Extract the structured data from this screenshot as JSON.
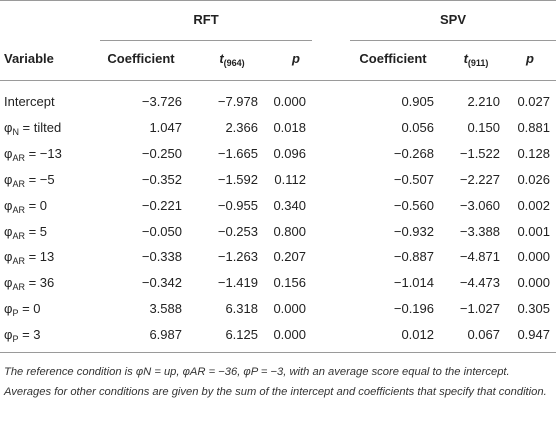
{
  "table": {
    "groups": [
      "RFT",
      "SPV"
    ],
    "header": [
      "Variable",
      "Coefficient",
      {
        "base": "t",
        "sub": "(964)"
      },
      "p",
      "Coefficient",
      {
        "base": "t",
        "sub": "(911)"
      },
      "p"
    ],
    "rows": [
      [
        "Intercept",
        "−3.726",
        "−7.978",
        "0.000",
        "0.905",
        "2.210",
        "0.027"
      ],
      [
        {
          "symbol": "φ",
          "sub": "N",
          "text": " = tilted"
        },
        "1.047",
        "2.366",
        "0.018",
        "0.056",
        "0.150",
        "0.881"
      ],
      [
        {
          "symbol": "φ",
          "sub": "AR",
          "text": " = −13"
        },
        "−0.250",
        "−1.665",
        "0.096",
        "−0.268",
        "−1.522",
        "0.128"
      ],
      [
        {
          "symbol": "φ",
          "sub": "AR",
          "text": " = −5"
        },
        "−0.352",
        "−1.592",
        "0.112",
        "−0.507",
        "−2.227",
        "0.026"
      ],
      [
        {
          "symbol": "φ",
          "sub": "AR",
          "text": " = 0"
        },
        "−0.221",
        "−0.955",
        "0.340",
        "−0.560",
        "−3.060",
        "0.002"
      ],
      [
        {
          "symbol": "φ",
          "sub": "AR",
          "text": " = 5"
        },
        "−0.050",
        "−0.253",
        "0.800",
        "−0.932",
        "−3.388",
        "0.001"
      ],
      [
        {
          "symbol": "φ",
          "sub": "AR",
          "text": " = 13"
        },
        "−0.338",
        "−1.263",
        "0.207",
        "−0.887",
        "−4.871",
        "0.000"
      ],
      [
        {
          "symbol": "φ",
          "sub": "AR",
          "text": " = 36"
        },
        "−0.342",
        "−1.419",
        "0.156",
        "−1.014",
        "−4.473",
        "0.000"
      ],
      [
        {
          "symbol": "φ",
          "sub": "P",
          "text": " = 0"
        },
        "3.588",
        "6.318",
        "0.000",
        "−0.196",
        "−1.027",
        "0.305"
      ],
      [
        {
          "symbol": "φ",
          "sub": "P",
          "text": " = 3"
        },
        "6.987",
        "6.125",
        "0.000",
        "0.012",
        "0.067",
        "0.947"
      ]
    ],
    "note": "The reference condition is φN = up, φAR = −36, φP = −3, with an average score equal to the intercept. Averages for other conditions are given by the sum of the intercept and coefficients that specify that condition."
  }
}
